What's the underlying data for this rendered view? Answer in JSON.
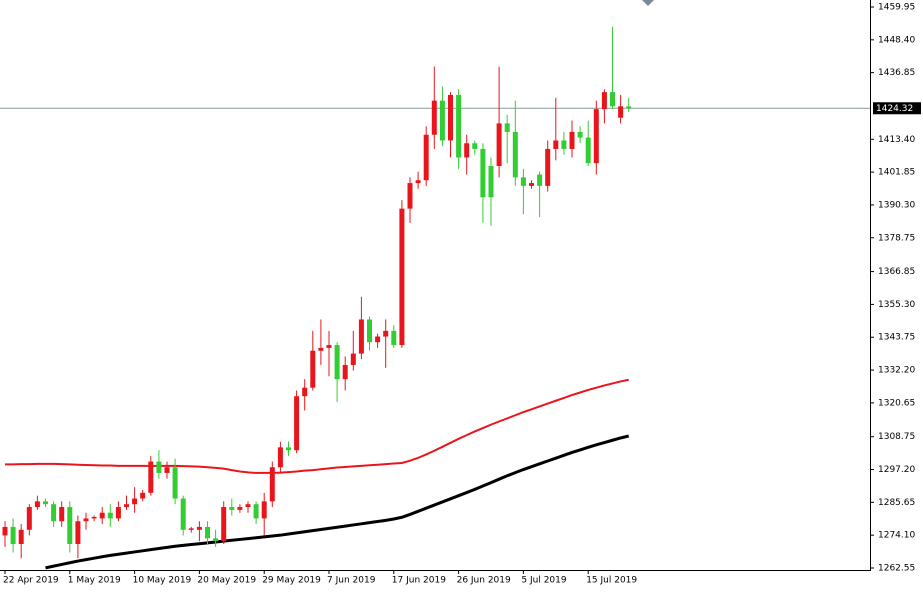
{
  "chart_data": {
    "type": "candlestick",
    "x": [
      "22 Apr 2019",
      null,
      null,
      null,
      null,
      null,
      null,
      null,
      "1 May 2019",
      null,
      null,
      null,
      null,
      null,
      null,
      null,
      "10 May 2019",
      null,
      null,
      null,
      null,
      null,
      null,
      null,
      "20 May 2019",
      null,
      null,
      null,
      null,
      null,
      null,
      null,
      "29 May 2019",
      null,
      null,
      null,
      null,
      null,
      null,
      null,
      "7 Jun 2019",
      null,
      null,
      null,
      null,
      null,
      null,
      null,
      "17 Jun 2019",
      null,
      null,
      null,
      null,
      null,
      null,
      null,
      "26 Jun 2019",
      null,
      null,
      null,
      null,
      null,
      null,
      null,
      "5 Jul 2019",
      null,
      null,
      null,
      null,
      null,
      null,
      null,
      "15 Jul 2019",
      null,
      null,
      null,
      null,
      null
    ],
    "open": [
      1274,
      1277,
      1271,
      1276,
      1284,
      1286,
      1285,
      1279,
      1284,
      1271,
      1279,
      1280,
      1280,
      1282,
      1280,
      1284,
      1285,
      1287,
      1289,
      1300,
      1296,
      1298,
      1287,
      1276,
      1276,
      1277,
      1273,
      1272,
      1284,
      1283,
      1284,
      1285,
      1280,
      1286,
      1298,
      1305,
      1304,
      1323,
      1326,
      1339,
      1340,
      1341,
      1329,
      1334,
      1338,
      1350,
      1342,
      1344,
      1346,
      1341,
      1389,
      1398,
      1399,
      1415,
      1427,
      1413,
      1429,
      1407,
      1412,
      1410,
      1404,
      1404,
      1419,
      1416,
      1400,
      1397,
      1401,
      1397,
      1410,
      1413,
      1410,
      1416,
      1414,
      1405,
      1424,
      1430,
      1421,
      1425
    ],
    "high": [
      1279,
      1280,
      1278,
      1285,
      1288,
      1287,
      1286,
      1286,
      1286,
      1281,
      1282,
      1281,
      1284,
      1285,
      1286,
      1288,
      1291,
      1290,
      1302,
      1304,
      1300,
      1301,
      1288,
      1277,
      1279,
      1279,
      1276,
      1286,
      1287,
      1285,
      1286,
      1286,
      1289,
      1300,
      1307,
      1307,
      1325,
      1329,
      1346,
      1350,
      1346,
      1342,
      1337,
      1346,
      1358,
      1351,
      1345,
      1350,
      1348,
      1392,
      1400,
      1402,
      1418,
      1439,
      1432,
      1430,
      1431,
      1415,
      1413,
      1412,
      1407,
      1439,
      1422,
      1427,
      1403,
      1399,
      1402,
      1413,
      1428,
      1416,
      1420,
      1418,
      1420,
      1427,
      1431,
      1453,
      1429,
      1428
    ],
    "low": [
      1270,
      1268,
      1266,
      1274,
      1283,
      1284,
      1277,
      1277,
      1268,
      1266,
      1276,
      1279,
      1278,
      1277,
      1279,
      1283,
      1282,
      1286,
      1288,
      1294,
      1294,
      1285,
      1274,
      1275,
      1272,
      1271,
      1270,
      1271,
      1281,
      1282,
      1282,
      1278,
      1274,
      1284,
      1296,
      1302,
      1303,
      1318,
      1325,
      1334,
      1330,
      1321,
      1325,
      1332,
      1336,
      1339,
      1340,
      1333,
      1340,
      1340,
      1384,
      1396,
      1397,
      1410,
      1411,
      1407,
      1403,
      1401,
      1408,
      1384,
      1383,
      1400,
      1405,
      1397,
      1387,
      1396,
      1386,
      1395,
      1406,
      1408,
      1407,
      1412,
      1404,
      1401,
      1419,
      1424,
      1419,
      1423
    ],
    "close": [
      1277,
      1271,
      1276,
      1284,
      1286,
      1285,
      1279,
      1284,
      1271,
      1279,
      1280,
      1280.5,
      1282,
      1280,
      1284,
      1285,
      1287,
      1289,
      1300,
      1296,
      1298,
      1287,
      1276,
      1276.5,
      1277,
      1273,
      1272,
      1284,
      1283,
      1284,
      1285,
      1280,
      1286,
      1298,
      1305,
      1304,
      1323,
      1326,
      1339,
      1340,
      1341,
      1329,
      1334,
      1338,
      1350,
      1342,
      1344,
      1346,
      1341,
      1389,
      1398,
      1399,
      1415,
      1427,
      1413,
      1429,
      1407,
      1412,
      1410,
      1393,
      1393,
      1419,
      1416,
      1400,
      1397,
      1398,
      1397,
      1410,
      1413,
      1410,
      1416,
      1414,
      1405,
      1424,
      1430,
      1425,
      1425,
      1424.32
    ],
    "up_color": "#e8161c",
    "down_color": "#32cd32",
    "lines": [
      {
        "color": "#e8161c",
        "values": [
          1299.0,
          1299.0,
          1299.1,
          1299.1,
          1299.2,
          1299.2,
          1299.2,
          1299.1,
          1299.0,
          1298.9,
          1298.8,
          1298.7,
          1298.6,
          1298.6,
          1298.5,
          1298.5,
          1298.5,
          1298.5,
          1298.5,
          1298.5,
          1298.5,
          1298.5,
          1298.4,
          1298.3,
          1298.2,
          1298.0,
          1297.8,
          1297.5,
          1297.0,
          1296.5,
          1296.2,
          1296.0,
          1296.0,
          1296.0,
          1296.1,
          1296.3,
          1296.5,
          1296.8,
          1297.0,
          1297.3,
          1297.6,
          1297.9,
          1298.1,
          1298.3,
          1298.5,
          1298.7,
          1298.9,
          1299.1,
          1299.3,
          1299.5,
          1300.3,
          1301.3,
          1302.5,
          1303.8,
          1305.2,
          1306.6,
          1308.0,
          1309.3,
          1310.6,
          1311.8,
          1313.0,
          1314.1,
          1315.2,
          1316.3,
          1317.4,
          1318.4,
          1319.4,
          1320.4,
          1321.4,
          1322.4,
          1323.4,
          1324.3,
          1325.2,
          1326.0,
          1326.8,
          1327.5,
          1328.2,
          1328.8
        ]
      },
      {
        "color": "#000000",
        "values": [
          null,
          null,
          null,
          null,
          null,
          1262.6,
          1263.2,
          1263.8,
          1264.4,
          1265.0,
          1265.5,
          1266.0,
          1266.5,
          1267.0,
          1267.4,
          1267.8,
          1268.2,
          1268.6,
          1269.0,
          1269.4,
          1269.8,
          1270.2,
          1270.5,
          1270.8,
          1271.1,
          1271.4,
          1271.7,
          1272.0,
          1272.3,
          1272.6,
          1272.9,
          1273.2,
          1273.5,
          1273.8,
          1274.1,
          1274.5,
          1274.9,
          1275.3,
          1275.7,
          1276.1,
          1276.5,
          1276.9,
          1277.3,
          1277.7,
          1278.1,
          1278.5,
          1278.9,
          1279.3,
          1279.8,
          1280.4,
          1281.4,
          1282.5,
          1283.6,
          1284.7,
          1285.8,
          1286.9,
          1288.0,
          1289.1,
          1290.2,
          1291.4,
          1292.6,
          1293.8,
          1295.0,
          1296.1,
          1297.2,
          1298.2,
          1299.2,
          1300.2,
          1301.2,
          1302.2,
          1303.2,
          1304.1,
          1305.0,
          1305.9,
          1306.7,
          1307.5,
          1308.3,
          1309.0
        ]
      }
    ],
    "current_price": 1424.32,
    "ylim": [
      1262.55,
      1459.95
    ],
    "yticks": [
      1262.55,
      {
        "value": 1274.1,
        "label": "1274.10"
      },
      1285.65,
      {
        "value": 1297.2,
        "label": "1297.20"
      },
      1308.75,
      1320.65,
      {
        "value": 1332.2,
        "label": "1332.20"
      },
      1343.75,
      {
        "value": 1355.3,
        "label": "1355.30"
      },
      1366.85,
      1378.75,
      {
        "value": 1390.3,
        "label": "1390.30"
      },
      1401.85,
      {
        "value": 1413.4,
        "label": "1413.40"
      },
      1436.85,
      {
        "value": 1448.4,
        "label": "1448.40"
      },
      1459.95
    ]
  }
}
